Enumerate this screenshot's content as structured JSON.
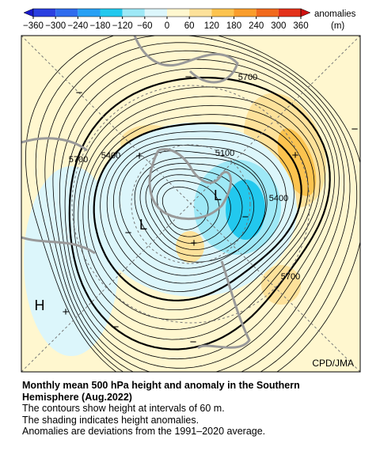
{
  "colorbar": {
    "title": "anomalies",
    "unit": "(m)",
    "ticks": [
      {
        "value": -360,
        "label": "−360"
      },
      {
        "value": -300,
        "label": "−300"
      },
      {
        "value": -240,
        "label": "−240"
      },
      {
        "value": -180,
        "label": "−180"
      },
      {
        "value": -120,
        "label": "−120"
      },
      {
        "value": -60,
        "label": "−60"
      },
      0,
      60,
      120,
      180,
      240,
      300,
      360
    ],
    "colors": [
      "#1a1acc",
      "#2a3fe0",
      "#2f6cee",
      "#27a0f4",
      "#22c8ee",
      "#9ee8f6",
      "#dcf6fb",
      "#fff7cf",
      "#fde19a",
      "#fcc34f",
      "#f99d2c",
      "#f16a1d",
      "#e3321a",
      "#cf1010"
    ]
  },
  "map": {
    "contour_labels": [
      "5700",
      "5700",
      "5700",
      "5400",
      "5400",
      "5100"
    ],
    "centers": [
      "L",
      "L",
      "H"
    ],
    "signs": [
      "+",
      "+",
      "+",
      "+",
      "−",
      "−",
      "−",
      "−",
      "−",
      "−",
      "−"
    ]
  },
  "credit": "CPD/JMA",
  "caption": {
    "title": "Monthly mean 500 hPa height and anomaly in the Southern Hemisphere (Aug.2022)",
    "lines": [
      "The contours show height at intervals of 60 m.",
      "The shading indicates height anomalies.",
      "Anomalies are deviations from the 1991–2020 average."
    ]
  }
}
